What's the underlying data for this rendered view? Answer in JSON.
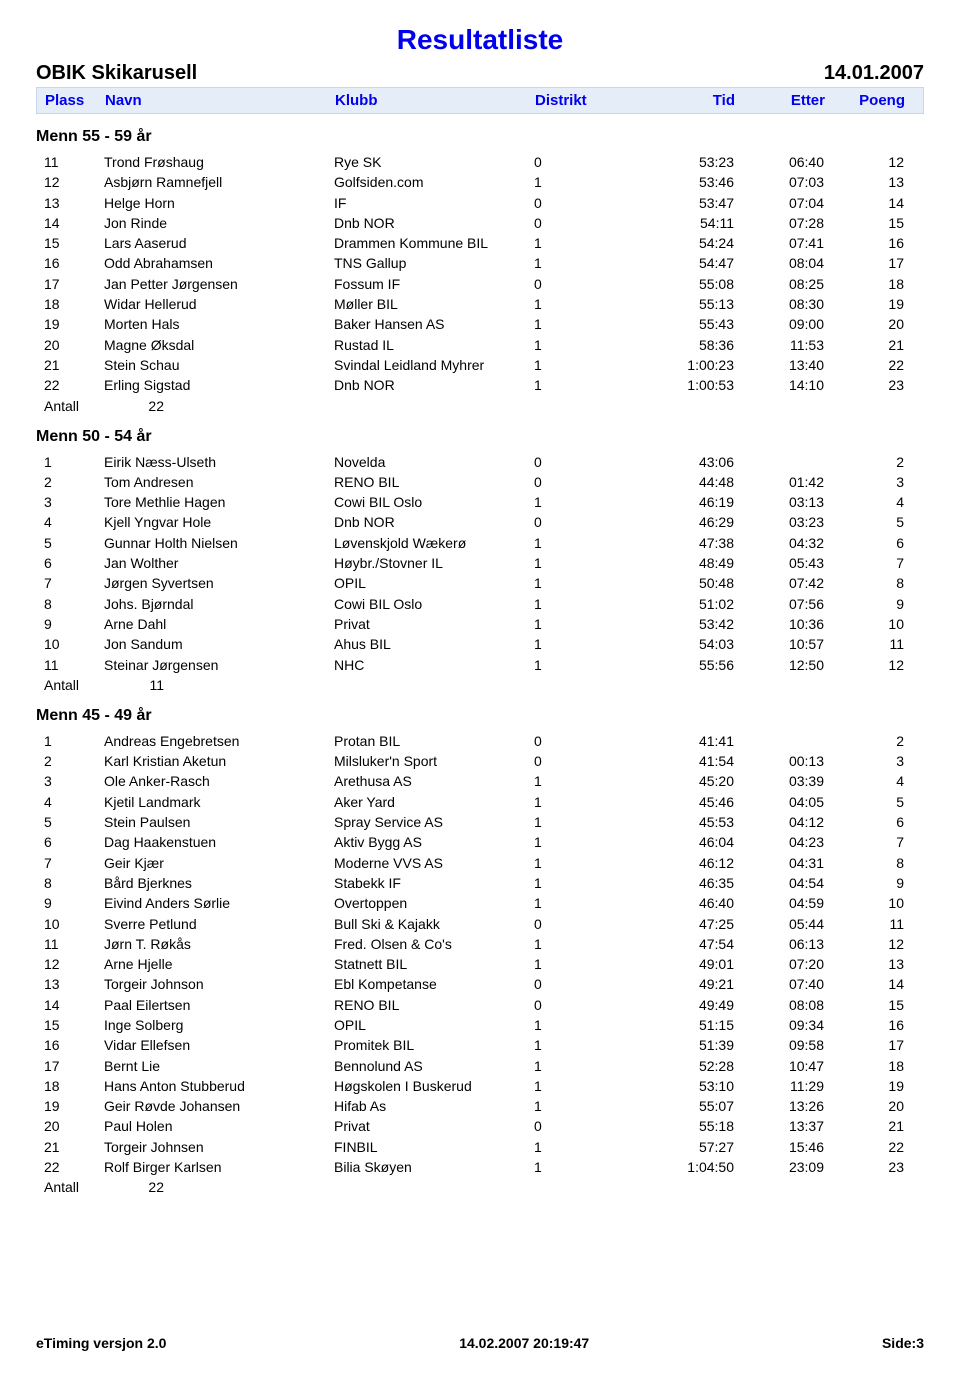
{
  "colors": {
    "title": "#0000ee",
    "header_bg": "#e5edf8",
    "header_border": "#c8d6ec",
    "text": "#000000",
    "background": "#ffffff"
  },
  "fonts": {
    "title_pt": 28,
    "event_pt": 20,
    "body_pt": 14,
    "category_pt": 16,
    "header_pt": 15
  },
  "page": {
    "title": "Resultatliste",
    "event": "OBIK Skikarusell",
    "date": "14.01.2007"
  },
  "columns": {
    "plass": "Plass",
    "navn": "Navn",
    "klubb": "Klubb",
    "distrikt": "Distrikt",
    "tid": "Tid",
    "etter": "Etter",
    "poeng": "Poeng"
  },
  "antall_label": "Antall",
  "categories": [
    {
      "title": "Menn 55 - 59 år",
      "antall": "22",
      "rows": [
        {
          "plass": "11",
          "navn": "Trond Frøshaug",
          "klubb": "Rye SK",
          "distrikt": "0",
          "tid": "53:23",
          "etter": "06:40",
          "poeng": "12"
        },
        {
          "plass": "12",
          "navn": "Asbjørn Ramnefjell",
          "klubb": "Golfsiden.com",
          "distrikt": "1",
          "tid": "53:46",
          "etter": "07:03",
          "poeng": "13"
        },
        {
          "plass": "13",
          "navn": "Helge Horn",
          "klubb": "IF",
          "distrikt": "0",
          "tid": "53:47",
          "etter": "07:04",
          "poeng": "14"
        },
        {
          "plass": "14",
          "navn": "Jon Rinde",
          "klubb": "Dnb NOR",
          "distrikt": "0",
          "tid": "54:11",
          "etter": "07:28",
          "poeng": "15"
        },
        {
          "plass": "15",
          "navn": "Lars Aaserud",
          "klubb": "Drammen Kommune BIL",
          "distrikt": "1",
          "tid": "54:24",
          "etter": "07:41",
          "poeng": "16"
        },
        {
          "plass": "16",
          "navn": "Odd Abrahamsen",
          "klubb": "TNS Gallup",
          "distrikt": "1",
          "tid": "54:47",
          "etter": "08:04",
          "poeng": "17"
        },
        {
          "plass": "17",
          "navn": "Jan Petter Jørgensen",
          "klubb": "Fossum IF",
          "distrikt": "0",
          "tid": "55:08",
          "etter": "08:25",
          "poeng": "18"
        },
        {
          "plass": "18",
          "navn": "Widar Hellerud",
          "klubb": "Møller BIL",
          "distrikt": "1",
          "tid": "55:13",
          "etter": "08:30",
          "poeng": "19"
        },
        {
          "plass": "19",
          "navn": "Morten Hals",
          "klubb": "Baker Hansen AS",
          "distrikt": "1",
          "tid": "55:43",
          "etter": "09:00",
          "poeng": "20"
        },
        {
          "plass": "20",
          "navn": "Magne Øksdal",
          "klubb": "Rustad IL",
          "distrikt": "1",
          "tid": "58:36",
          "etter": "11:53",
          "poeng": "21"
        },
        {
          "plass": "21",
          "navn": "Stein Schau",
          "klubb": "Svindal Leidland Myhrer",
          "distrikt": "1",
          "tid": "1:00:23",
          "etter": "13:40",
          "poeng": "22"
        },
        {
          "plass": "22",
          "navn": "Erling Sigstad",
          "klubb": "Dnb NOR",
          "distrikt": "1",
          "tid": "1:00:53",
          "etter": "14:10",
          "poeng": "23"
        }
      ]
    },
    {
      "title": "Menn 50 - 54 år",
      "antall": "11",
      "rows": [
        {
          "plass": "1",
          "navn": "Eirik Næss-Ulseth",
          "klubb": "Novelda",
          "distrikt": "0",
          "tid": "43:06",
          "etter": "",
          "poeng": "2"
        },
        {
          "plass": "2",
          "navn": "Tom Andresen",
          "klubb": "RENO BIL",
          "distrikt": "0",
          "tid": "44:48",
          "etter": "01:42",
          "poeng": "3"
        },
        {
          "plass": "3",
          "navn": "Tore Methlie Hagen",
          "klubb": "Cowi BIL Oslo",
          "distrikt": "1",
          "tid": "46:19",
          "etter": "03:13",
          "poeng": "4"
        },
        {
          "plass": "4",
          "navn": "Kjell Yngvar Hole",
          "klubb": "Dnb NOR",
          "distrikt": "0",
          "tid": "46:29",
          "etter": "03:23",
          "poeng": "5"
        },
        {
          "plass": "5",
          "navn": "Gunnar Holth Nielsen",
          "klubb": "Løvenskjold Wækerø",
          "distrikt": "1",
          "tid": "47:38",
          "etter": "04:32",
          "poeng": "6"
        },
        {
          "plass": "6",
          "navn": "Jan Wolther",
          "klubb": "Høybr./Stovner IL",
          "distrikt": "1",
          "tid": "48:49",
          "etter": "05:43",
          "poeng": "7"
        },
        {
          "plass": "7",
          "navn": "Jørgen Syvertsen",
          "klubb": "OPIL",
          "distrikt": "1",
          "tid": "50:48",
          "etter": "07:42",
          "poeng": "8"
        },
        {
          "plass": "8",
          "navn": "Johs. Bjørndal",
          "klubb": "Cowi BIL Oslo",
          "distrikt": "1",
          "tid": "51:02",
          "etter": "07:56",
          "poeng": "9"
        },
        {
          "plass": "9",
          "navn": "Arne Dahl",
          "klubb": "Privat",
          "distrikt": "1",
          "tid": "53:42",
          "etter": "10:36",
          "poeng": "10"
        },
        {
          "plass": "10",
          "navn": "Jon Sandum",
          "klubb": "Ahus BIL",
          "distrikt": "1",
          "tid": "54:03",
          "etter": "10:57",
          "poeng": "11"
        },
        {
          "plass": "11",
          "navn": "Steinar Jørgensen",
          "klubb": "NHC",
          "distrikt": "1",
          "tid": "55:56",
          "etter": "12:50",
          "poeng": "12"
        }
      ]
    },
    {
      "title": "Menn 45 - 49 år",
      "antall": "22",
      "rows": [
        {
          "plass": "1",
          "navn": "Andreas Engebretsen",
          "klubb": "Protan BIL",
          "distrikt": "0",
          "tid": "41:41",
          "etter": "",
          "poeng": "2"
        },
        {
          "plass": "2",
          "navn": "Karl Kristian Aketun",
          "klubb": "Milsluker'n Sport",
          "distrikt": "0",
          "tid": "41:54",
          "etter": "00:13",
          "poeng": "3"
        },
        {
          "plass": "3",
          "navn": "Ole Anker-Rasch",
          "klubb": "Arethusa AS",
          "distrikt": "1",
          "tid": "45:20",
          "etter": "03:39",
          "poeng": "4"
        },
        {
          "plass": "4",
          "navn": "Kjetil Landmark",
          "klubb": "Aker Yard",
          "distrikt": "1",
          "tid": "45:46",
          "etter": "04:05",
          "poeng": "5"
        },
        {
          "plass": "5",
          "navn": "Stein Paulsen",
          "klubb": "Spray Service AS",
          "distrikt": "1",
          "tid": "45:53",
          "etter": "04:12",
          "poeng": "6"
        },
        {
          "plass": "6",
          "navn": "Dag Haakenstuen",
          "klubb": "Aktiv Bygg AS",
          "distrikt": "1",
          "tid": "46:04",
          "etter": "04:23",
          "poeng": "7"
        },
        {
          "plass": "7",
          "navn": "Geir Kjær",
          "klubb": "Moderne VVS AS",
          "distrikt": "1",
          "tid": "46:12",
          "etter": "04:31",
          "poeng": "8"
        },
        {
          "plass": "8",
          "navn": "Bård Bjerknes",
          "klubb": "Stabekk IF",
          "distrikt": "1",
          "tid": "46:35",
          "etter": "04:54",
          "poeng": "9"
        },
        {
          "plass": "9",
          "navn": "Eivind Anders Sørlie",
          "klubb": "Overtoppen",
          "distrikt": "1",
          "tid": "46:40",
          "etter": "04:59",
          "poeng": "10"
        },
        {
          "plass": "10",
          "navn": "Sverre Petlund",
          "klubb": "Bull Ski & Kajakk",
          "distrikt": "0",
          "tid": "47:25",
          "etter": "05:44",
          "poeng": "11"
        },
        {
          "plass": "11",
          "navn": "Jørn T. Røkås",
          "klubb": "Fred. Olsen & Co's",
          "distrikt": "1",
          "tid": "47:54",
          "etter": "06:13",
          "poeng": "12"
        },
        {
          "plass": "12",
          "navn": "Arne Hjelle",
          "klubb": "Statnett BIL",
          "distrikt": "1",
          "tid": "49:01",
          "etter": "07:20",
          "poeng": "13"
        },
        {
          "plass": "13",
          "navn": "Torgeir Johnson",
          "klubb": "Ebl Kompetanse",
          "distrikt": "0",
          "tid": "49:21",
          "etter": "07:40",
          "poeng": "14"
        },
        {
          "plass": "14",
          "navn": "Paal Eilertsen",
          "klubb": "RENO BIL",
          "distrikt": "0",
          "tid": "49:49",
          "etter": "08:08",
          "poeng": "15"
        },
        {
          "plass": "15",
          "navn": "Inge Solberg",
          "klubb": "OPIL",
          "distrikt": "1",
          "tid": "51:15",
          "etter": "09:34",
          "poeng": "16"
        },
        {
          "plass": "16",
          "navn": "Vidar Ellefsen",
          "klubb": "Promitek BIL",
          "distrikt": "1",
          "tid": "51:39",
          "etter": "09:58",
          "poeng": "17"
        },
        {
          "plass": "17",
          "navn": "Bernt Lie",
          "klubb": "Bennolund AS",
          "distrikt": "1",
          "tid": "52:28",
          "etter": "10:47",
          "poeng": "18"
        },
        {
          "plass": "18",
          "navn": "Hans Anton Stubberud",
          "klubb": "Høgskolen I Buskerud",
          "distrikt": "1",
          "tid": "53:10",
          "etter": "11:29",
          "poeng": "19"
        },
        {
          "plass": "19",
          "navn": "Geir Røvde Johansen",
          "klubb": "Hifab As",
          "distrikt": "1",
          "tid": "55:07",
          "etter": "13:26",
          "poeng": "20"
        },
        {
          "plass": "20",
          "navn": "Paul Holen",
          "klubb": "Privat",
          "distrikt": "0",
          "tid": "55:18",
          "etter": "13:37",
          "poeng": "21"
        },
        {
          "plass": "21",
          "navn": "Torgeir Johnsen",
          "klubb": "FINBIL",
          "distrikt": "1",
          "tid": "57:27",
          "etter": "15:46",
          "poeng": "22"
        },
        {
          "plass": "22",
          "navn": "Rolf Birger Karlsen",
          "klubb": "Bilia Skøyen",
          "distrikt": "1",
          "tid": "1:04:50",
          "etter": "23:09",
          "poeng": "23"
        }
      ]
    }
  ],
  "footer": {
    "left": "eTiming versjon 2.0",
    "center": "14.02.2007 20:19:47",
    "right": "Side:3"
  }
}
